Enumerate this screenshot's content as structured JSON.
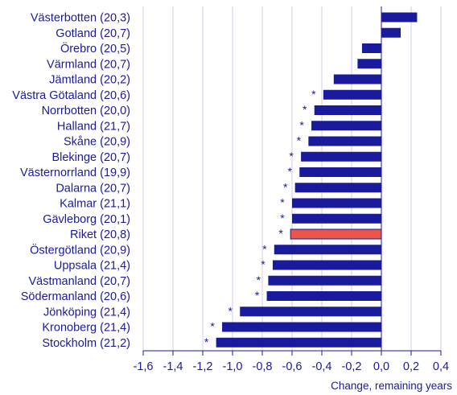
{
  "chart_data": {
    "type": "bar",
    "orientation": "horizontal",
    "xlabel": "Change, remaining years",
    "xlim": [
      -1.6,
      0.4
    ],
    "xticks": [
      -1.6,
      -1.4,
      -1.2,
      -1.0,
      -0.8,
      -0.6,
      -0.4,
      -0.2,
      0.0,
      0.2,
      0.4
    ],
    "xtick_labels": [
      "-1,6",
      "-1,4",
      "-1,2",
      "-1,0",
      "-0,8",
      "-0,6",
      "-0,4",
      "-0,2",
      "0,0",
      "0,2",
      "0,4"
    ],
    "grid": "vertical",
    "colors": {
      "bar": "#1a1a9c",
      "highlight": "#e8574a",
      "grid": "#cfcfe6",
      "text": "#1a1a9c"
    },
    "categories": [
      "Västerbotten (20,3)",
      "Gotland (20,7)",
      "Örebro (20,5)",
      "Värmland (20,7)",
      "Jämtland (20,2)",
      "Västra Götaland (20,6)",
      "Norrbotten (20,0)",
      "Halland (21,7)",
      "Skåne (20,9)",
      "Blekinge (20,7)",
      "Västernorrland (19,9)",
      "Dalarna (20,7)",
      "Kalmar (21,1)",
      "Gävleborg (20,1)",
      "Riket (20,8)",
      "Östergötland (20,9)",
      "Uppsala (21,4)",
      "Västmanland (20,7)",
      "Södermanland (20,6)",
      "Jönköping (21,4)",
      "Kronoberg (21,4)",
      "Stockholm (21,2)"
    ],
    "values": [
      0.24,
      0.13,
      -0.13,
      -0.16,
      -0.32,
      -0.39,
      -0.45,
      -0.47,
      -0.49,
      -0.54,
      -0.55,
      -0.58,
      -0.6,
      -0.6,
      -0.61,
      -0.72,
      -0.73,
      -0.76,
      -0.77,
      -0.95,
      -1.07,
      -1.11
    ],
    "significant": [
      false,
      false,
      false,
      false,
      false,
      true,
      true,
      true,
      true,
      true,
      true,
      true,
      true,
      true,
      true,
      true,
      true,
      true,
      true,
      true,
      true,
      true
    ],
    "marker": "*",
    "highlight": "Riket (20,8)"
  }
}
